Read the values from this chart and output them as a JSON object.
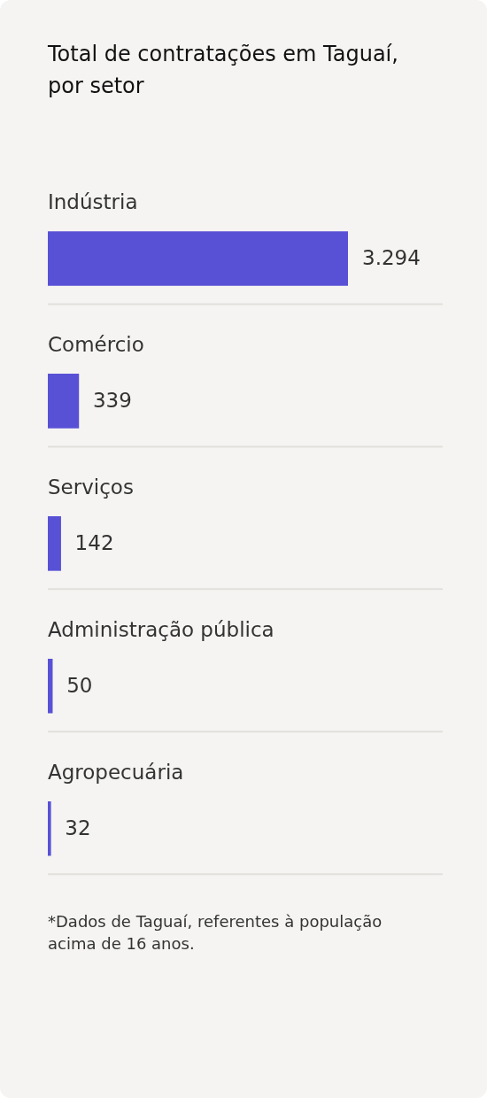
{
  "chart_data": {
    "type": "bar",
    "orientation": "horizontal",
    "title": "Total de contratações em Taguaí, por setor",
    "categories": [
      "Indústria",
      "Comércio",
      "Serviços",
      "Administração pública",
      "Agropecuária"
    ],
    "values": [
      3294,
      339,
      142,
      50,
      32
    ],
    "value_labels": [
      "3.294",
      "339",
      "142",
      "50",
      "32"
    ],
    "color": "#5851d6",
    "grid": "y",
    "tick_labels": "y",
    "annotations": [
      "*Dados de Taguaí, referentes à população acima de 16 anos."
    ]
  }
}
